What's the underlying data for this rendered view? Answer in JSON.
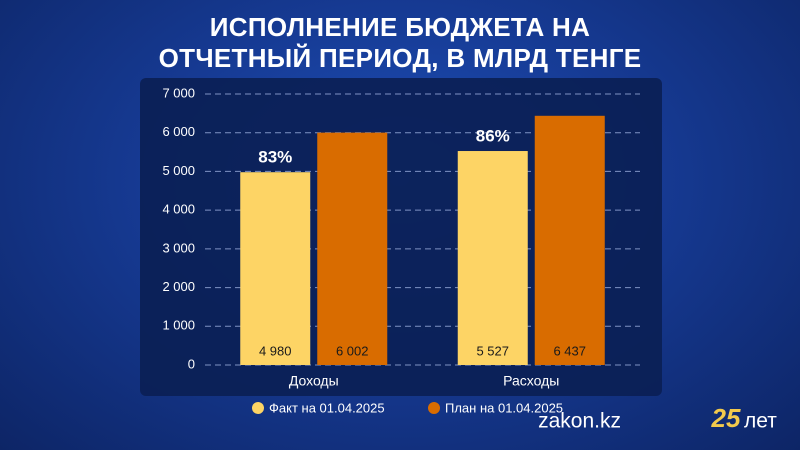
{
  "chart_data": {
    "type": "bar",
    "title": "ИСПОЛНЕНИЕ БЮДЖЕТА НА ОТЧЕТНЫЙ ПЕРИОД, В МЛРД ТЕНГЕ",
    "categories": [
      "Доходы",
      "Расходы"
    ],
    "series": [
      {
        "name": "Факт на 01.04.2025",
        "color": "#fdd465",
        "values": [
          4980,
          5527
        ],
        "value_labels": [
          "4 980",
          "5 527"
        ]
      },
      {
        "name": "План на 01.04.2025",
        "color": "#d96c00",
        "values": [
          6002,
          6437
        ],
        "value_labels": [
          "6 002",
          "6 437"
        ]
      }
    ],
    "annotations": [
      "83%",
      "86%"
    ],
    "ylim": [
      0,
      7000
    ],
    "yticks": [
      0,
      {
        "value": 1000,
        "label": "1 000"
      },
      {
        "value": 2000,
        "label": "2 000"
      },
      {
        "value": 3000,
        "label": "3 000"
      },
      {
        "value": 4000,
        "label": "4 000"
      },
      {
        "value": 5000,
        "label": "5 000"
      },
      {
        "value": 6000,
        "label": "6 000"
      },
      {
        "value": 7000,
        "label": "7 000"
      }
    ],
    "grid": true,
    "legend": "bottom"
  },
  "brand": {
    "site": "zakon.kz",
    "number": "25",
    "suffix": "лет"
  }
}
